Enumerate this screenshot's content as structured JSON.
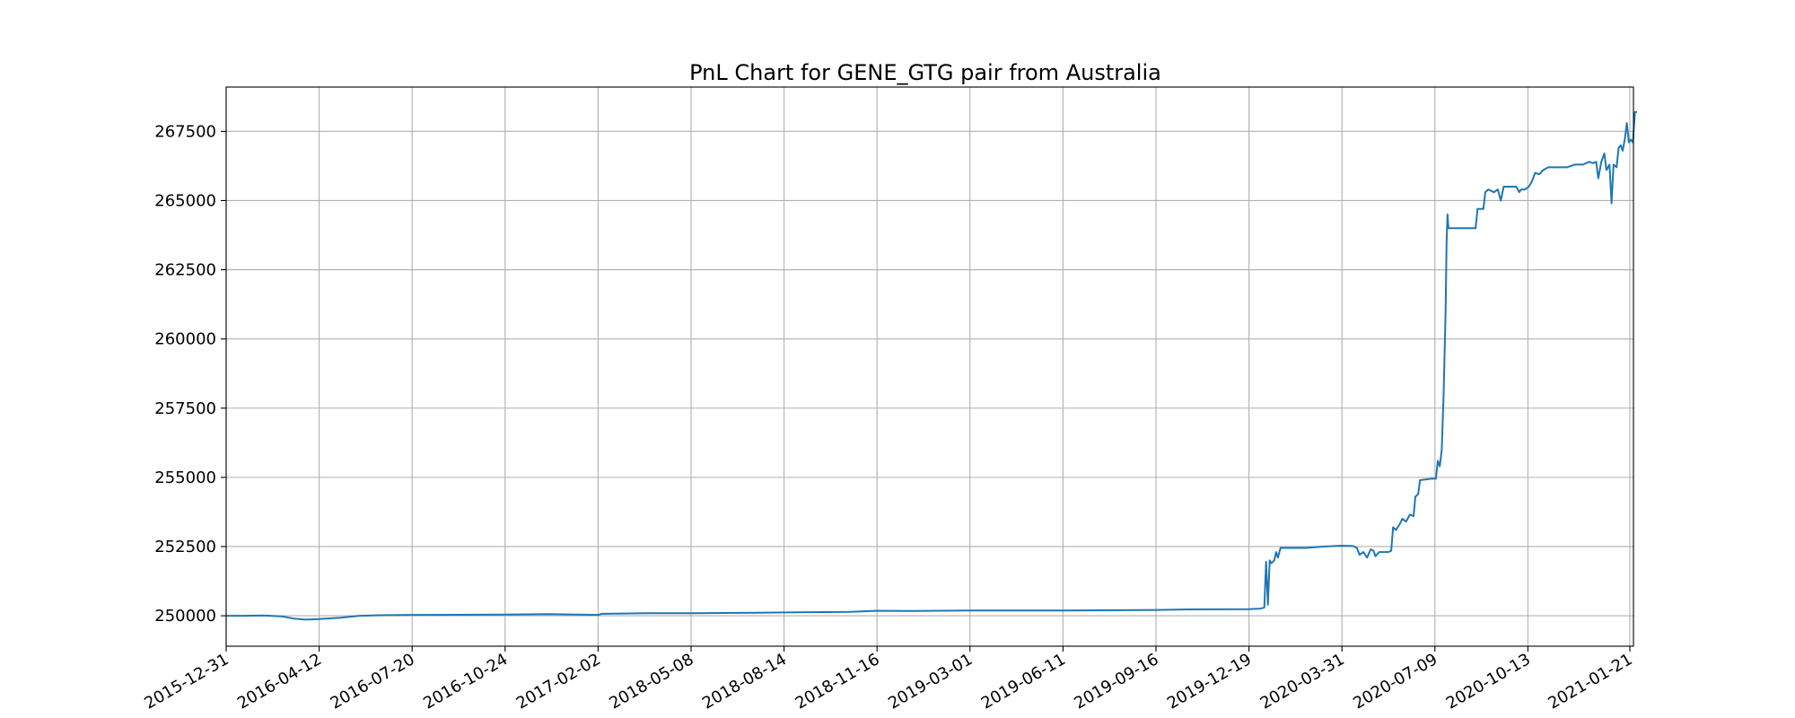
{
  "chart_data": {
    "type": "line",
    "title": "PnL Chart for GENE_GTG pair from Australia",
    "xlabel": "",
    "ylabel": "",
    "x_tick_labels": [
      "2015-12-31",
      "2016-04-12",
      "2016-07-20",
      "2016-10-24",
      "2017-02-02",
      "2018-05-08",
      "2018-08-14",
      "2018-11-16",
      "2019-03-01",
      "2019-06-11",
      "2019-09-16",
      "2019-12-19",
      "2020-03-31",
      "2020-07-09",
      "2020-10-13",
      "2021-01-21"
    ],
    "y_tick_labels": [
      "250000",
      "252500",
      "255000",
      "257500",
      "260000",
      "262500",
      "265000",
      "267500"
    ],
    "y_ticks": [
      250000,
      252500,
      255000,
      257500,
      260000,
      262500,
      265000,
      267500
    ],
    "ylim": [
      248900,
      269100
    ],
    "grid": true,
    "line_color": "#1f77b4",
    "series": [
      {
        "points": [
          [
            "2015-12-31",
            250000
          ],
          [
            "2016-01-20",
            250000
          ],
          [
            "2016-02-10",
            250010
          ],
          [
            "2016-03-01",
            249980
          ],
          [
            "2016-03-15",
            249900
          ],
          [
            "2016-03-28",
            249860
          ],
          [
            "2016-04-12",
            249880
          ],
          [
            "2016-05-05",
            249930
          ],
          [
            "2016-05-25",
            250000
          ],
          [
            "2016-06-15",
            250020
          ],
          [
            "2016-07-20",
            250030
          ],
          [
            "2016-10-24",
            250040
          ],
          [
            "2016-12-10",
            250060
          ],
          [
            "2017-02-02",
            250030
          ],
          [
            "2017-02-20",
            250070
          ],
          [
            "2017-06-01",
            250080
          ],
          [
            "2017-10-01",
            250090
          ],
          [
            "2018-05-08",
            250090
          ],
          [
            "2018-07-15",
            250110
          ],
          [
            "2018-08-14",
            250120
          ],
          [
            "2018-10-20",
            250140
          ],
          [
            "2018-11-16",
            250180
          ],
          [
            "2018-12-20",
            250170
          ],
          [
            "2019-03-01",
            250190
          ],
          [
            "2019-06-11",
            250190
          ],
          [
            "2019-09-16",
            250210
          ],
          [
            "2019-10-20",
            250230
          ],
          [
            "2019-12-19",
            250240
          ],
          [
            "2020-01-01",
            250260
          ],
          [
            "2020-01-05",
            250300
          ],
          [
            "2020-01-07",
            251950
          ],
          [
            "2020-01-09",
            250400
          ],
          [
            "2020-01-11",
            252000
          ],
          [
            "2020-01-13",
            251900
          ],
          [
            "2020-01-16",
            252000
          ],
          [
            "2020-01-18",
            252300
          ],
          [
            "2020-01-20",
            252100
          ],
          [
            "2020-01-23",
            252450
          ],
          [
            "2020-02-20",
            252450
          ],
          [
            "2020-03-10",
            252500
          ],
          [
            "2020-03-31",
            252530
          ],
          [
            "2020-04-12",
            252520
          ],
          [
            "2020-04-16",
            252450
          ],
          [
            "2020-04-19",
            252200
          ],
          [
            "2020-04-23",
            252300
          ],
          [
            "2020-04-27",
            252100
          ],
          [
            "2020-05-01",
            252400
          ],
          [
            "2020-05-04",
            252350
          ],
          [
            "2020-05-06",
            252150
          ],
          [
            "2020-05-10",
            252300
          ],
          [
            "2020-05-20",
            252300
          ],
          [
            "2020-05-23",
            252350
          ],
          [
            "2020-05-25",
            253200
          ],
          [
            "2020-05-28",
            253100
          ],
          [
            "2020-06-01",
            253300
          ],
          [
            "2020-06-04",
            253500
          ],
          [
            "2020-06-08",
            253400
          ],
          [
            "2020-06-12",
            253650
          ],
          [
            "2020-06-16",
            253600
          ],
          [
            "2020-06-18",
            254300
          ],
          [
            "2020-06-21",
            254400
          ],
          [
            "2020-06-23",
            254900
          ],
          [
            "2020-07-05",
            254950
          ],
          [
            "2020-07-10",
            254950
          ],
          [
            "2020-07-12",
            255600
          ],
          [
            "2020-07-14",
            255400
          ],
          [
            "2020-07-16",
            256000
          ],
          [
            "2020-07-18",
            258000
          ],
          [
            "2020-07-20",
            261000
          ],
          [
            "2020-07-21",
            263500
          ],
          [
            "2020-07-22",
            264500
          ],
          [
            "2020-07-23",
            264000
          ],
          [
            "2020-07-25",
            264000
          ],
          [
            "2020-08-20",
            264000
          ],
          [
            "2020-08-22",
            264700
          ],
          [
            "2020-08-28",
            264700
          ],
          [
            "2020-08-30",
            265300
          ],
          [
            "2020-09-02",
            265400
          ],
          [
            "2020-09-08",
            265300
          ],
          [
            "2020-09-12",
            265400
          ],
          [
            "2020-09-15",
            265000
          ],
          [
            "2020-09-18",
            265500
          ],
          [
            "2020-10-01",
            265500
          ],
          [
            "2020-10-04",
            265300
          ],
          [
            "2020-10-06",
            265400
          ],
          [
            "2020-10-10",
            265400
          ],
          [
            "2020-10-14",
            265500
          ],
          [
            "2020-10-17",
            265700
          ],
          [
            "2020-10-20",
            266000
          ],
          [
            "2020-10-24",
            265950
          ],
          [
            "2020-10-28",
            266100
          ],
          [
            "2020-11-02",
            266200
          ],
          [
            "2020-11-10",
            266200
          ],
          [
            "2020-11-20",
            266200
          ],
          [
            "2020-11-28",
            266300
          ],
          [
            "2020-12-06",
            266300
          ],
          [
            "2020-12-12",
            266400
          ],
          [
            "2020-12-16",
            266350
          ],
          [
            "2020-12-19",
            266400
          ],
          [
            "2020-12-21",
            265800
          ],
          [
            "2020-12-24",
            266400
          ],
          [
            "2020-12-27",
            266700
          ],
          [
            "2020-12-29",
            266100
          ],
          [
            "2021-01-01",
            266300
          ],
          [
            "2021-01-03",
            264900
          ],
          [
            "2021-01-05",
            266300
          ],
          [
            "2021-01-08",
            266200
          ],
          [
            "2021-01-10",
            266900
          ],
          [
            "2021-01-12",
            267000
          ],
          [
            "2021-01-14",
            266800
          ],
          [
            "2021-01-16",
            267200
          ],
          [
            "2021-01-18",
            267800
          ],
          [
            "2021-01-20",
            267100
          ],
          [
            "2021-01-22",
            267200
          ],
          [
            "2021-01-24",
            267100
          ],
          [
            "2021-01-26",
            268200
          ],
          [
            "2021-01-28",
            268200
          ]
        ]
      }
    ]
  }
}
